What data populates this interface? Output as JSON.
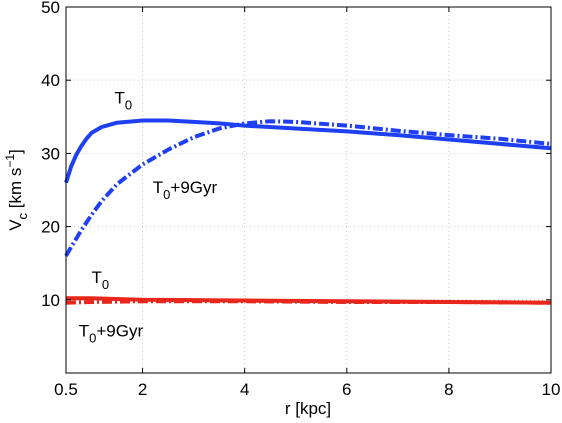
{
  "chart_data": {
    "type": "line",
    "xlabel": "r [kpc]",
    "ylabel": {
      "main": "V",
      "sub": "c",
      "unit": "[km s",
      "sup": "−1",
      "close": "]"
    },
    "xlim": [
      0.5,
      10
    ],
    "ylim": [
      0,
      50
    ],
    "x_ticks": [
      {
        "value": 0.5,
        "label": "0.5"
      },
      {
        "value": 2,
        "label": "2"
      },
      {
        "value": 4,
        "label": "4"
      },
      {
        "value": 6,
        "label": "6"
      },
      {
        "value": 8,
        "label": "8"
      },
      {
        "value": 10,
        "label": "10"
      }
    ],
    "y_ticks": [
      {
        "value": 10,
        "label": "10"
      },
      {
        "value": 20,
        "label": "20"
      },
      {
        "value": 30,
        "label": "30"
      },
      {
        "value": 40,
        "label": "40"
      },
      {
        "value": 50,
        "label": "50"
      }
    ],
    "grid": true,
    "series": [
      {
        "color": "#1f3ff5",
        "style": "solid",
        "x": [
          0.5,
          0.6,
          0.7,
          0.8,
          0.9,
          1.0,
          1.2,
          1.5,
          2.0,
          2.5,
          3.0,
          3.5,
          4.0,
          5.0,
          6.0,
          7.0,
          8.0,
          9.0,
          10.0
        ],
        "y": [
          26.0,
          28.2,
          29.8,
          31.0,
          32.0,
          32.8,
          33.6,
          34.2,
          34.5,
          34.5,
          34.3,
          34.1,
          33.8,
          33.4,
          33.0,
          32.5,
          31.9,
          31.3,
          30.7
        ]
      },
      {
        "color": "#1f3ff5",
        "style": "dashdot",
        "x": [
          0.5,
          0.6,
          0.8,
          1.0,
          1.2,
          1.5,
          2.0,
          2.5,
          3.0,
          3.5,
          4.0,
          4.5,
          5.0,
          6.0,
          7.0,
          8.0,
          9.0,
          10.0
        ],
        "y": [
          16.0,
          17.2,
          19.5,
          21.6,
          23.5,
          25.8,
          28.5,
          30.5,
          32.2,
          33.4,
          34.1,
          34.4,
          34.3,
          33.8,
          33.1,
          32.5,
          32.0,
          31.3
        ]
      },
      {
        "color": "#e8261c",
        "style": "solid",
        "x": [
          0.5,
          1.0,
          2.0,
          4.0,
          6.0,
          8.0,
          10.0
        ],
        "y": [
          10.2,
          10.2,
          10.0,
          9.9,
          9.8,
          9.7,
          9.6
        ]
      },
      {
        "color": "#e8261c",
        "style": "dashdot",
        "x": [
          0.5,
          1.0,
          2.0,
          4.0,
          6.0,
          8.0,
          10.0
        ],
        "y": [
          9.6,
          9.7,
          9.8,
          9.8,
          9.7,
          9.7,
          9.6
        ]
      }
    ],
    "annotations": [
      {
        "main": "T",
        "sub": "0",
        "suffix": "",
        "x": 1.45,
        "y": 36.8
      },
      {
        "main": "T",
        "sub": "0",
        "suffix": "+9Gyr",
        "x": 2.2,
        "y": 24.6
      },
      {
        "main": "T",
        "sub": "0",
        "suffix": "",
        "x": 1.0,
        "y": 12.3
      },
      {
        "main": "T",
        "sub": "0",
        "suffix": "+9Gyr",
        "x": 0.75,
        "y": 5.0
      }
    ]
  }
}
